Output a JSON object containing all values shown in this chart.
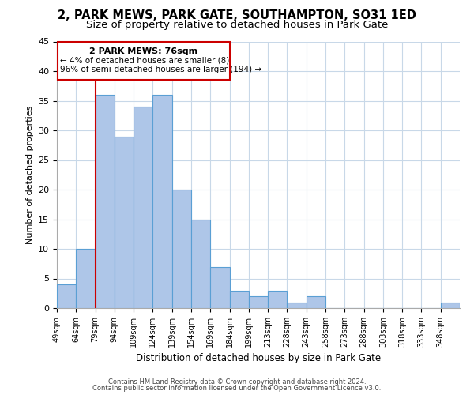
{
  "title": "2, PARK MEWS, PARK GATE, SOUTHAMPTON, SO31 1ED",
  "subtitle": "Size of property relative to detached houses in Park Gate",
  "xlabel": "Distribution of detached houses by size in Park Gate",
  "ylabel": "Number of detached properties",
  "bin_labels": [
    "49sqm",
    "64sqm",
    "79sqm",
    "94sqm",
    "109sqm",
    "124sqm",
    "139sqm",
    "154sqm",
    "169sqm",
    "184sqm",
    "199sqm",
    "213sqm",
    "228sqm",
    "243sqm",
    "258sqm",
    "273sqm",
    "288sqm",
    "303sqm",
    "318sqm",
    "333sqm",
    "348sqm"
  ],
  "bar_values": [
    4,
    10,
    36,
    29,
    34,
    36,
    20,
    15,
    7,
    3,
    2,
    3,
    1,
    2,
    0,
    0,
    0,
    0,
    0,
    0,
    1
  ],
  "bar_color": "#aec6e8",
  "bar_edge_color": "#5a9fd4",
  "subject_line_color": "#cc0000",
  "ylim": [
    0,
    45
  ],
  "yticks": [
    0,
    5,
    10,
    15,
    20,
    25,
    30,
    35,
    40,
    45
  ],
  "annotation_title": "2 PARK MEWS: 76sqm",
  "annotation_line1": "← 4% of detached houses are smaller (8)",
  "annotation_line2": "96% of semi-detached houses are larger (194) →",
  "annotation_box_color": "#ffffff",
  "annotation_box_edge": "#cc0000",
  "footer_line1": "Contains HM Land Registry data © Crown copyright and database right 2024.",
  "footer_line2": "Contains public sector information licensed under the Open Government Licence v3.0.",
  "bg_color": "#ffffff",
  "grid_color": "#c8d8e8",
  "title_fontsize": 10.5,
  "subtitle_fontsize": 9.5,
  "bin_width": 15
}
